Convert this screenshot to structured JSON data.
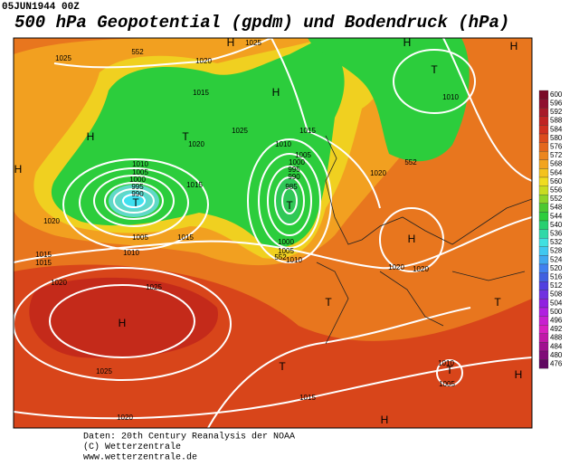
{
  "timestamp": "05JUN1944 00Z",
  "title": "500 hPa Geopotential (gpdm) und Bodendruck (hPa)",
  "colorbar": {
    "labels": [
      600,
      596,
      592,
      588,
      584,
      580,
      576,
      572,
      568,
      564,
      560,
      556,
      552,
      548,
      544,
      540,
      536,
      532,
      528,
      524,
      520,
      516,
      512,
      508,
      504,
      500,
      496,
      492,
      488,
      484,
      480,
      476
    ]
  },
  "footer": [
    "Daten: 20th Century Reanalysis der NOAA",
    "(C) Wetterzentrale",
    "www.wetterzentrale.de"
  ],
  "centers": [
    "H",
    "H",
    "T",
    "H",
    "H",
    "T",
    "H",
    "H",
    "T",
    "T",
    "H",
    "T",
    "T",
    "H",
    "T",
    "T",
    "H",
    "H"
  ],
  "pressure_labels": [
    "1025",
    "1025",
    "1020",
    "1015",
    "1020",
    "1025",
    "1015",
    "1010",
    "1010",
    "1005",
    "1000",
    "995",
    "990",
    "1015",
    "1020",
    "1005",
    "1010",
    "1015",
    "1005",
    "1000",
    "995",
    "990",
    "985",
    "1000",
    "1005",
    "1010",
    "1020",
    "1020",
    "1020",
    "1010",
    "1015",
    "1015",
    "1020",
    "1025",
    "1025",
    "1015",
    "1020",
    "1010",
    "1005",
    "552",
    "552",
    "552"
  ]
}
